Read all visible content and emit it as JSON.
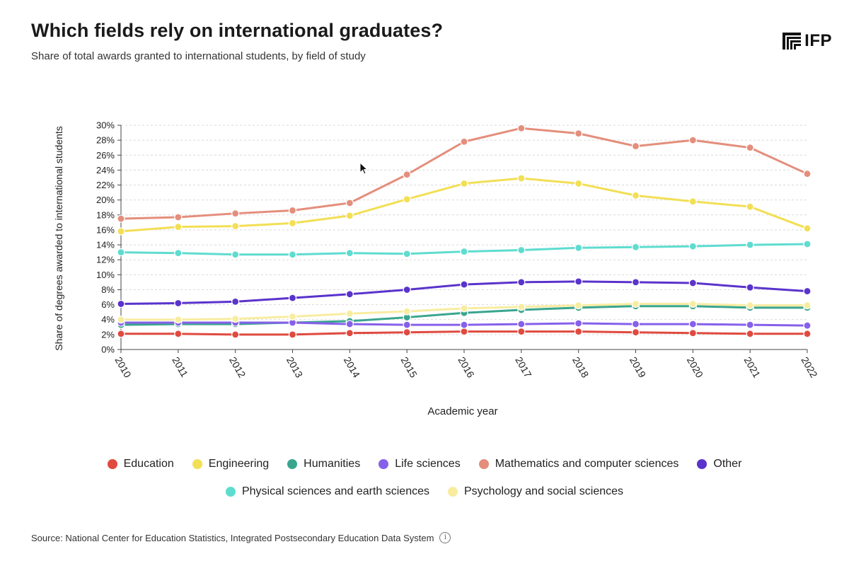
{
  "header": {
    "title": "Which fields rely on international graduates?",
    "subtitle": "Share of total awards granted to international students, by field of study",
    "logo_text": "IFP"
  },
  "footer": {
    "source": "Source: National Center for Education Statistics, Integrated Postsecondary Education Data System"
  },
  "chart_data": {
    "type": "line",
    "title": "Which fields rely on international graduates?",
    "xlabel": "Academic year",
    "ylabel": "Share of degrees awarded to international students",
    "ylim": [
      0,
      30
    ],
    "y_ticks": [
      "0%",
      "2%",
      "4%",
      "6%",
      "8%",
      "10%",
      "12%",
      "14%",
      "16%",
      "18%",
      "20%",
      "22%",
      "24%",
      "26%",
      "28%",
      "30%"
    ],
    "y_tick_values": [
      0,
      2,
      4,
      6,
      8,
      10,
      12,
      14,
      16,
      18,
      20,
      22,
      24,
      26,
      28,
      30
    ],
    "categories": [
      "2010",
      "2011",
      "2012",
      "2013",
      "2014",
      "2015",
      "2016",
      "2017",
      "2018",
      "2019",
      "2020",
      "2021",
      "2022"
    ],
    "legend_rows": [
      [
        0,
        1,
        2,
        3,
        4,
        5
      ],
      [
        6,
        7
      ]
    ],
    "series": [
      {
        "name": "Education",
        "color": "#e04a3f",
        "values": [
          2.1,
          2.1,
          2.0,
          2.0,
          2.2,
          2.3,
          2.4,
          2.4,
          2.4,
          2.3,
          2.2,
          2.1,
          2.1
        ]
      },
      {
        "name": "Engineering",
        "color": "#f2df55",
        "values": [
          15.8,
          16.4,
          16.5,
          16.9,
          17.9,
          20.1,
          22.2,
          22.9,
          22.2,
          20.6,
          19.8,
          19.1,
          16.2
        ]
      },
      {
        "name": "Humanities",
        "color": "#3aa58f",
        "values": [
          3.3,
          3.4,
          3.4,
          3.6,
          3.8,
          4.3,
          4.9,
          5.3,
          5.6,
          5.8,
          5.8,
          5.6,
          5.6
        ]
      },
      {
        "name": "Life sciences",
        "color": "#8660ea",
        "values": [
          3.6,
          3.6,
          3.6,
          3.6,
          3.4,
          3.3,
          3.3,
          3.4,
          3.5,
          3.4,
          3.4,
          3.3,
          3.2
        ]
      },
      {
        "name": "Mathematics and computer sciences",
        "color": "#e48e7c",
        "values": [
          17.5,
          17.7,
          18.2,
          18.6,
          19.6,
          23.4,
          27.8,
          29.6,
          28.9,
          27.2,
          28.0,
          27.0,
          23.5
        ]
      },
      {
        "name": "Other",
        "color": "#5a33cc",
        "values": [
          6.1,
          6.2,
          6.4,
          6.9,
          7.4,
          8.0,
          8.7,
          9.0,
          9.1,
          9.0,
          8.9,
          8.3,
          7.8
        ]
      },
      {
        "name": "Physical sciences and earth sciences",
        "color": "#5fdcd0",
        "values": [
          13.0,
          12.9,
          12.7,
          12.7,
          12.9,
          12.8,
          13.1,
          13.3,
          13.6,
          13.7,
          13.8,
          14.0,
          14.1
        ]
      },
      {
        "name": "Psychology and social sciences",
        "color": "#f8eca0",
        "values": [
          4.0,
          4.0,
          4.1,
          4.4,
          4.8,
          5.1,
          5.5,
          5.7,
          5.9,
          6.1,
          6.1,
          5.9,
          5.9
        ]
      }
    ]
  }
}
